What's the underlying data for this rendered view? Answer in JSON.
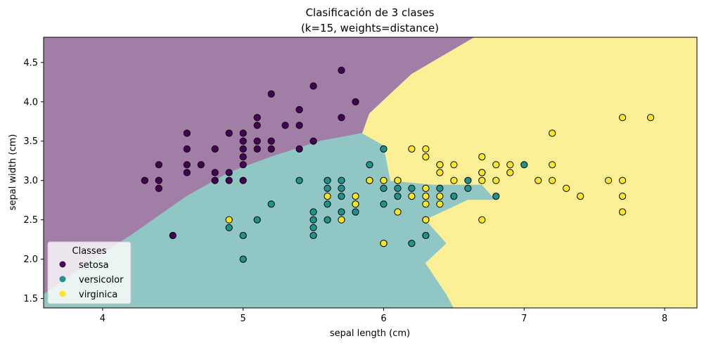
{
  "chart_data": {
    "type": "scatter",
    "title_lines": [
      "Clasificación de 3 clases",
      "(k=15, weights=distance)"
    ],
    "xlabel": "sepal length (cm)",
    "ylabel": "sepal width (cm)",
    "xlim": [
      3.58,
      8.23
    ],
    "ylim": [
      1.38,
      4.82
    ],
    "x_ticks": [
      4,
      5,
      6,
      7,
      8
    ],
    "x_tick_labels": [
      "4",
      "5",
      "6",
      "7",
      "8"
    ],
    "y_ticks": [
      1.5,
      2.0,
      2.5,
      3.0,
      3.5,
      4.0,
      4.5
    ],
    "y_tick_labels": [
      "1.5",
      "2.0",
      "2.5",
      "3.0",
      "3.5",
      "4.0",
      "4.5"
    ],
    "grid": false,
    "legend": {
      "title": "Classes",
      "position": "lower-left",
      "entries": [
        "setosa",
        "versicolor",
        "virginica"
      ]
    },
    "colors": {
      "setosa": "#440154",
      "versicolor": "#21918c",
      "virginica": "#fde725",
      "region_setosa": "#a07ea6",
      "region_versicolor": "#90c6c3",
      "region_virginica": "#fbf096"
    },
    "decision_regions": {
      "setosa": [
        [
          3.58,
          4.82
        ],
        [
          6.65,
          4.82
        ],
        [
          6.2,
          4.35
        ],
        [
          5.9,
          3.85
        ],
        [
          5.85,
          3.6
        ],
        [
          5.55,
          3.5
        ],
        [
          5.2,
          3.3
        ],
        [
          4.9,
          3.1
        ],
        [
          4.6,
          2.8
        ],
        [
          4.2,
          2.3
        ],
        [
          3.9,
          1.95
        ],
        [
          3.58,
          1.55
        ]
      ],
      "versicolor": [
        [
          3.58,
          1.55
        ],
        [
          3.9,
          1.95
        ],
        [
          4.2,
          2.3
        ],
        [
          4.6,
          2.8
        ],
        [
          4.9,
          3.1
        ],
        [
          5.2,
          3.3
        ],
        [
          5.55,
          3.5
        ],
        [
          5.85,
          3.6
        ],
        [
          6.0,
          3.45
        ],
        [
          6.05,
          3.0
        ],
        [
          6.35,
          2.95
        ],
        [
          6.7,
          2.95
        ],
        [
          6.8,
          2.75
        ],
        [
          6.6,
          2.75
        ],
        [
          6.3,
          2.5
        ],
        [
          6.45,
          2.2
        ],
        [
          6.3,
          1.95
        ],
        [
          6.45,
          1.55
        ],
        [
          6.5,
          1.38
        ],
        [
          3.58,
          1.38
        ]
      ],
      "virginica": [
        [
          6.65,
          4.82
        ],
        [
          8.23,
          4.82
        ],
        [
          8.23,
          1.38
        ],
        [
          6.5,
          1.38
        ],
        [
          6.45,
          1.55
        ],
        [
          6.3,
          1.95
        ],
        [
          6.45,
          2.2
        ],
        [
          6.3,
          2.5
        ],
        [
          6.6,
          2.75
        ],
        [
          6.8,
          2.75
        ],
        [
          6.7,
          2.95
        ],
        [
          6.35,
          2.95
        ],
        [
          6.05,
          3.0
        ],
        [
          6.0,
          3.45
        ],
        [
          5.85,
          3.6
        ],
        [
          5.9,
          3.85
        ],
        [
          6.2,
          4.35
        ]
      ]
    },
    "series": [
      {
        "name": "setosa",
        "points": [
          [
            4.3,
            3.0
          ],
          [
            4.4,
            3.2
          ],
          [
            4.4,
            3.0
          ],
          [
            4.4,
            2.9
          ],
          [
            4.5,
            2.3
          ],
          [
            4.6,
            3.6
          ],
          [
            4.6,
            3.4
          ],
          [
            4.6,
            3.2
          ],
          [
            4.6,
            3.1
          ],
          [
            4.7,
            3.2
          ],
          [
            4.8,
            3.4
          ],
          [
            4.8,
            3.1
          ],
          [
            4.8,
            3.0
          ],
          [
            4.9,
            3.6
          ],
          [
            4.9,
            3.1
          ],
          [
            4.9,
            3.0
          ],
          [
            5.0,
            3.6
          ],
          [
            5.0,
            3.5
          ],
          [
            5.0,
            3.4
          ],
          [
            5.0,
            3.3
          ],
          [
            5.0,
            3.2
          ],
          [
            5.0,
            3.0
          ],
          [
            5.1,
            3.8
          ],
          [
            5.1,
            3.7
          ],
          [
            5.1,
            3.5
          ],
          [
            5.1,
            3.4
          ],
          [
            5.2,
            4.1
          ],
          [
            5.2,
            3.5
          ],
          [
            5.2,
            3.4
          ],
          [
            5.3,
            3.7
          ],
          [
            5.4,
            3.9
          ],
          [
            5.4,
            3.7
          ],
          [
            5.4,
            3.4
          ],
          [
            5.5,
            4.2
          ],
          [
            5.5,
            3.5
          ],
          [
            5.7,
            4.4
          ],
          [
            5.7,
            3.8
          ],
          [
            5.8,
            4.0
          ]
        ]
      },
      {
        "name": "versicolor",
        "points": [
          [
            4.9,
            2.4
          ],
          [
            5.0,
            2.0
          ],
          [
            5.0,
            2.3
          ],
          [
            5.1,
            2.5
          ],
          [
            5.2,
            2.7
          ],
          [
            5.4,
            3.0
          ],
          [
            5.5,
            2.6
          ],
          [
            5.5,
            2.5
          ],
          [
            5.5,
            2.4
          ],
          [
            5.5,
            2.3
          ],
          [
            5.6,
            3.0
          ],
          [
            5.6,
            2.9
          ],
          [
            5.6,
            2.7
          ],
          [
            5.6,
            2.5
          ],
          [
            5.7,
            3.0
          ],
          [
            5.7,
            2.9
          ],
          [
            5.7,
            2.8
          ],
          [
            5.7,
            2.6
          ],
          [
            5.8,
            2.7
          ],
          [
            5.8,
            2.6
          ],
          [
            5.9,
            3.2
          ],
          [
            5.9,
            3.0
          ],
          [
            6.0,
            3.4
          ],
          [
            6.0,
            2.9
          ],
          [
            6.0,
            2.7
          ],
          [
            6.0,
            2.2
          ],
          [
            6.1,
            3.0
          ],
          [
            6.1,
            2.9
          ],
          [
            6.1,
            2.8
          ],
          [
            6.2,
            2.9
          ],
          [
            6.2,
            2.2
          ],
          [
            6.3,
            2.5
          ],
          [
            6.3,
            2.3
          ],
          [
            6.4,
            2.9
          ],
          [
            6.4,
            3.2
          ],
          [
            6.5,
            2.8
          ],
          [
            6.6,
            3.0
          ],
          [
            6.6,
            2.9
          ],
          [
            6.7,
            3.1
          ],
          [
            6.8,
            2.8
          ],
          [
            7.0,
            3.2
          ]
        ]
      },
      {
        "name": "virginica",
        "points": [
          [
            4.9,
            2.5
          ],
          [
            5.6,
            2.8
          ],
          [
            5.7,
            2.5
          ],
          [
            5.8,
            2.8
          ],
          [
            5.8,
            2.7
          ],
          [
            5.9,
            3.0
          ],
          [
            6.0,
            3.0
          ],
          [
            6.0,
            2.2
          ],
          [
            6.1,
            3.0
          ],
          [
            6.1,
            2.6
          ],
          [
            6.2,
            3.4
          ],
          [
            6.2,
            2.8
          ],
          [
            6.3,
            3.4
          ],
          [
            6.3,
            3.3
          ],
          [
            6.3,
            2.9
          ],
          [
            6.3,
            2.8
          ],
          [
            6.3,
            2.7
          ],
          [
            6.3,
            2.5
          ],
          [
            6.4,
            3.2
          ],
          [
            6.4,
            3.1
          ],
          [
            6.4,
            2.8
          ],
          [
            6.4,
            2.7
          ],
          [
            6.5,
            3.2
          ],
          [
            6.5,
            3.0
          ],
          [
            6.7,
            3.3
          ],
          [
            6.7,
            3.1
          ],
          [
            6.7,
            3.0
          ],
          [
            6.7,
            2.5
          ],
          [
            6.8,
            3.2
          ],
          [
            6.8,
            3.0
          ],
          [
            6.9,
            3.2
          ],
          [
            6.9,
            3.1
          ],
          [
            7.1,
            3.0
          ],
          [
            7.2,
            3.6
          ],
          [
            7.2,
            3.2
          ],
          [
            7.2,
            3.0
          ],
          [
            7.3,
            2.9
          ],
          [
            7.4,
            2.8
          ],
          [
            7.6,
            3.0
          ],
          [
            7.7,
            3.8
          ],
          [
            7.7,
            3.0
          ],
          [
            7.7,
            2.8
          ],
          [
            7.7,
            2.6
          ],
          [
            7.9,
            3.8
          ]
        ]
      }
    ]
  }
}
